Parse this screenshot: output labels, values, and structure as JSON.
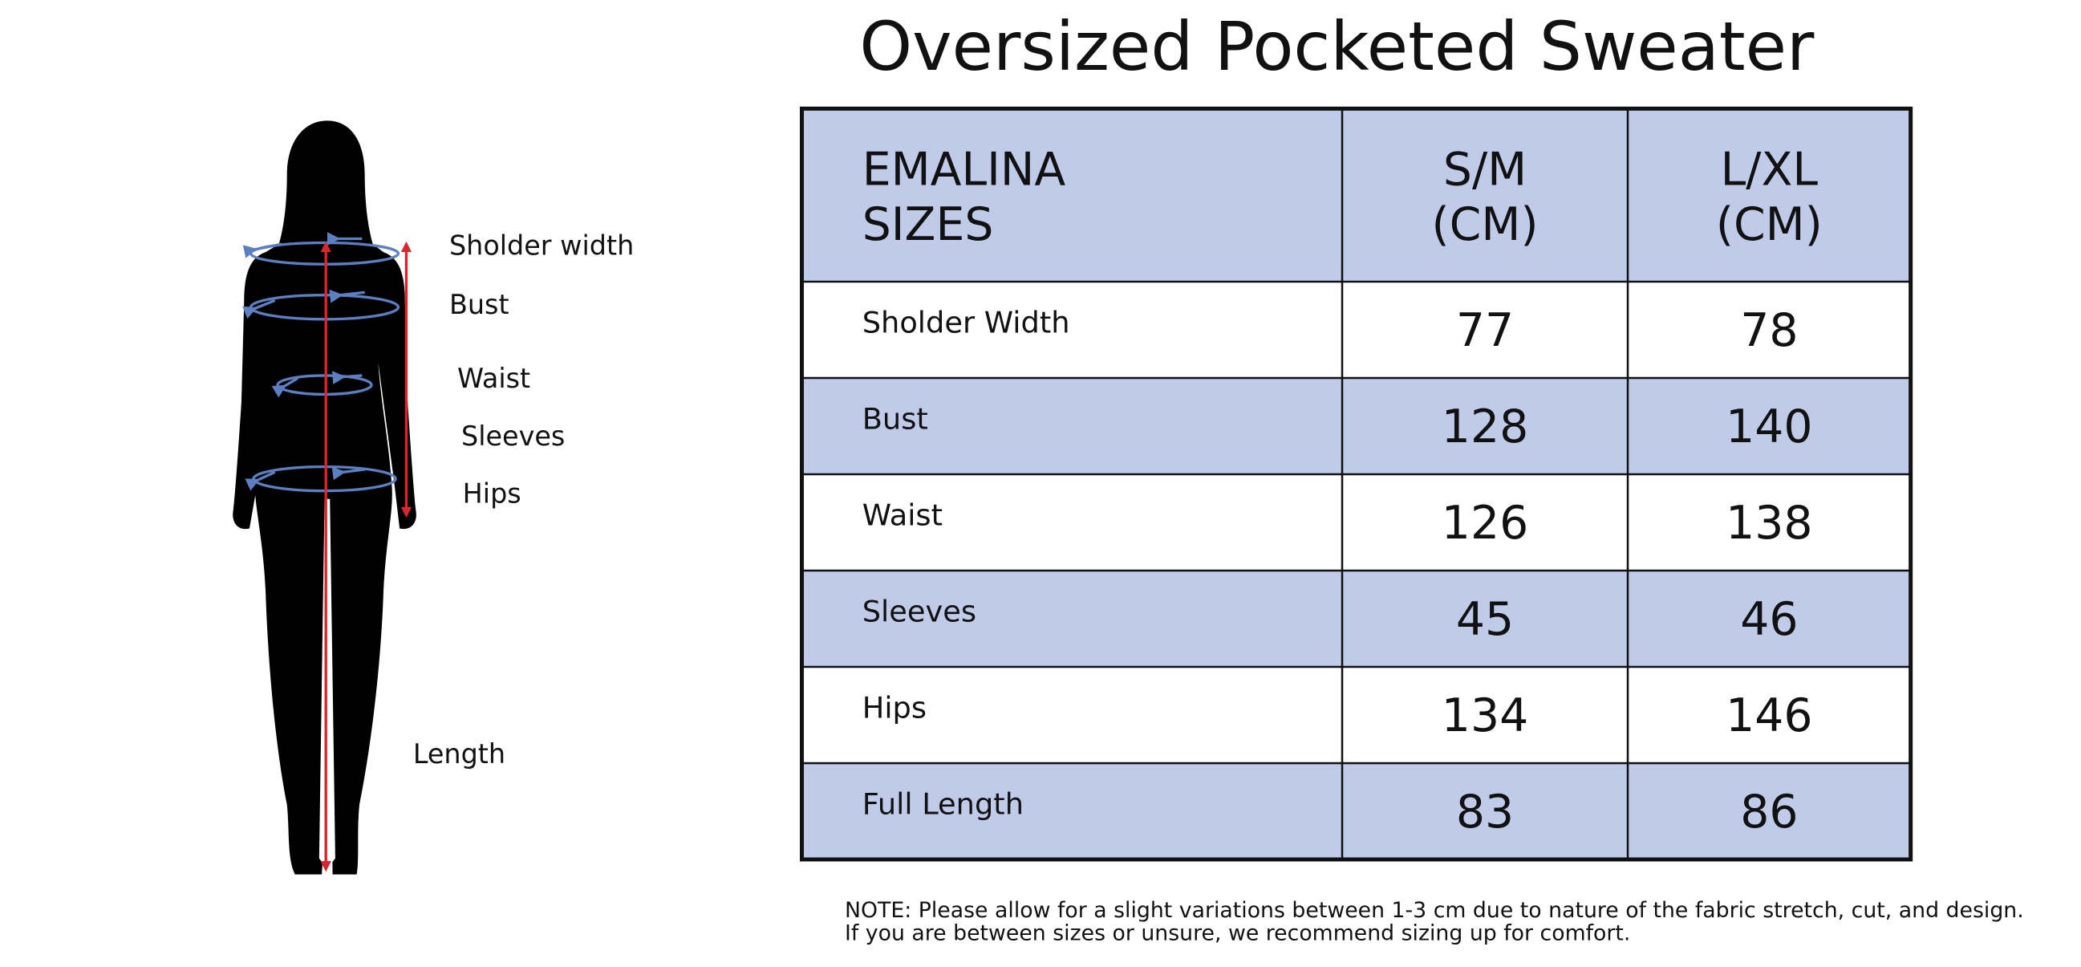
{
  "title": "Oversized Pocketed Sweater",
  "figure_labels": [
    "Sholder width",
    "Bust",
    "Waist",
    "Sleeves",
    "Hips",
    "Length"
  ],
  "table": {
    "header": [
      [
        "EMALINA",
        "SIZES"
      ],
      [
        "S/M",
        "(CM)"
      ],
      [
        "L/XL",
        "(CM)"
      ]
    ],
    "rows": [
      [
        "Sholder Width",
        "77",
        "78"
      ],
      [
        "Bust",
        "128",
        "140"
      ],
      [
        "Waist",
        "126",
        "138"
      ],
      [
        "Sleeves",
        "45",
        "46"
      ],
      [
        "Hips",
        "134",
        "146"
      ],
      [
        "Full Length",
        "83",
        "86"
      ]
    ]
  },
  "note": [
    "NOTE: Please allow for a slight variations between 1-3 cm due to nature of the fabric stretch, cut, and design.",
    "If you are between sizes or unsure, we recommend sizing up for comfort."
  ]
}
